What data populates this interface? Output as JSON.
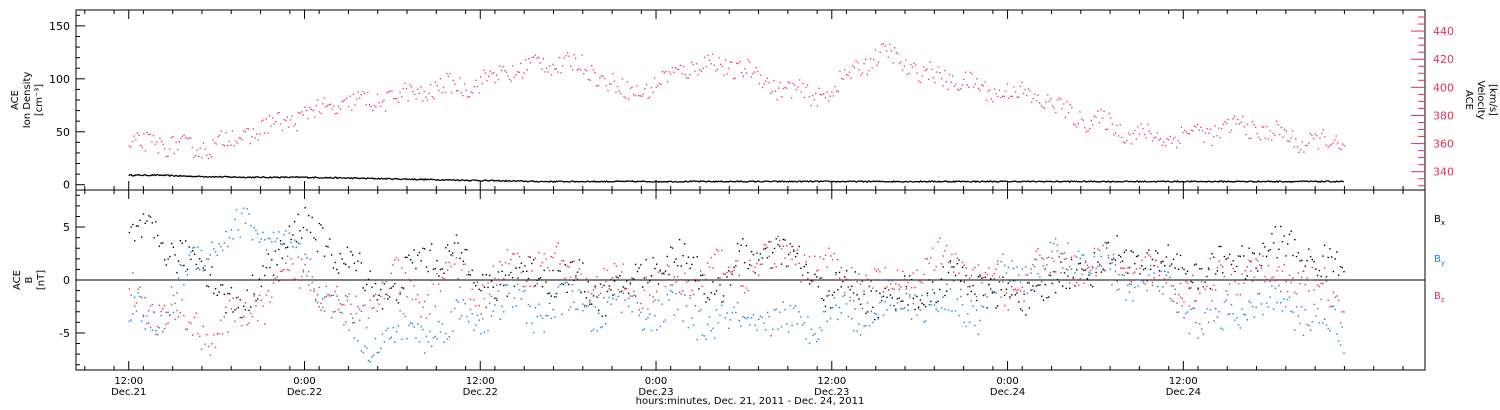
{
  "chart_data": [
    {
      "type": "scatter",
      "panel": "top",
      "ylabel_left": [
        "ACE",
        "Ion Density",
        "[cm⁻³]"
      ],
      "ylabel_right": [
        "ACE",
        "Velocity",
        "[km/s]"
      ],
      "yticks_left": [
        0,
        50,
        100,
        150
      ],
      "ylim_left": [
        -5,
        165
      ],
      "yticks_right": [
        340,
        360,
        380,
        400,
        420,
        440
      ],
      "ylim_right": [
        327,
        455
      ],
      "colors": {
        "density": "#000000",
        "velocity": "#e8305a"
      },
      "series": [
        {
          "axis": "left",
          "hours": [
            0,
            2,
            4,
            8,
            12,
            16,
            20,
            24,
            28,
            32,
            36,
            40,
            44,
            48,
            52,
            56,
            60,
            64,
            68,
            72,
            76,
            80,
            83
          ],
          "values": [
            9,
            9,
            8,
            7,
            7,
            6,
            5,
            4,
            3,
            3,
            3,
            3,
            3,
            3,
            3,
            3,
            3,
            3,
            3,
            3,
            3,
            3,
            3
          ]
        },
        {
          "name": "Velocity",
          "axis": "right",
          "hours": [
            0,
            2,
            4,
            6,
            8,
            10,
            12,
            14,
            16,
            18,
            20,
            22,
            24,
            26,
            28,
            30,
            32,
            34,
            36,
            38,
            40,
            42,
            44,
            46,
            48,
            50,
            52,
            54,
            56,
            58,
            60,
            62,
            64,
            66,
            68,
            70,
            72,
            74,
            76,
            78,
            80,
            82,
            83
          ],
          "values": [
            357,
            362,
            356,
            360,
            367,
            374,
            381,
            387,
            390,
            393,
            397,
            401,
            404,
            412,
            417,
            418,
            410,
            396,
            402,
            415,
            417,
            413,
            402,
            395,
            397,
            418,
            424,
            410,
            407,
            400,
            397,
            394,
            382,
            376,
            370,
            364,
            367,
            369,
            373,
            368,
            362,
            361,
            358
          ]
        }
      ]
    },
    {
      "type": "scatter",
      "panel": "bottom",
      "ylabel": [
        "ACE",
        "B",
        "[nT]"
      ],
      "yticks": [
        -5,
        0,
        5
      ],
      "ylim": [
        -8.5,
        8.5
      ],
      "zero_line": true,
      "colors": {
        "Bx": "#000000",
        "By": "#1a7fdc",
        "Bz": "#e8305a"
      },
      "series": [
        {
          "name": "Bx",
          "label_main": "B",
          "label_sub": "x",
          "hours": [
            0,
            2,
            4,
            6,
            8,
            10,
            12,
            14,
            16,
            18,
            20,
            22,
            24,
            26,
            28,
            30,
            32,
            34,
            36,
            38,
            40,
            42,
            44,
            46,
            48,
            50,
            52,
            54,
            56,
            58,
            60,
            62,
            64,
            66,
            68,
            70,
            72,
            74,
            76,
            78,
            80,
            82,
            83
          ],
          "values": [
            4,
            4,
            2,
            0,
            -3,
            3,
            5,
            3,
            0,
            -1,
            2,
            3,
            0,
            0,
            1,
            0,
            -1,
            -1,
            2,
            2,
            -1,
            2,
            3,
            1,
            -1,
            -1,
            -2,
            -1,
            0,
            0,
            -2,
            -1,
            0,
            2,
            2,
            2,
            1,
            1,
            2,
            3,
            3,
            1,
            1
          ]
        },
        {
          "name": "By",
          "label_main": "B",
          "label_sub": "y",
          "hours": [
            0,
            2,
            4,
            6,
            8,
            10,
            12,
            14,
            16,
            18,
            20,
            22,
            24,
            26,
            28,
            30,
            32,
            34,
            36,
            38,
            40,
            42,
            44,
            46,
            48,
            50,
            52,
            54,
            56,
            58,
            60,
            62,
            64,
            66,
            68,
            70,
            72,
            74,
            76,
            78,
            80,
            82,
            83
          ],
          "values": [
            -3,
            -4,
            1,
            4,
            5,
            4,
            1,
            -2,
            -6,
            -5,
            -5,
            -4,
            -3,
            -2,
            -3,
            -2,
            -3,
            -2,
            -3,
            -3,
            -4,
            -4,
            -4,
            -4,
            -3,
            -3,
            -2,
            -2,
            -2,
            -3,
            1,
            1,
            2,
            2,
            0,
            0,
            -3,
            -4,
            -3,
            -2,
            -3,
            -4,
            -5
          ]
        },
        {
          "name": "Bz",
          "label_main": "B",
          "label_sub": "z",
          "hours": [
            0,
            2,
            4,
            6,
            8,
            10,
            12,
            14,
            16,
            18,
            20,
            22,
            24,
            26,
            28,
            30,
            32,
            34,
            36,
            38,
            40,
            42,
            44,
            46,
            48,
            50,
            52,
            54,
            56,
            58,
            60,
            62,
            64,
            66,
            68,
            70,
            72,
            74,
            76,
            78,
            80,
            82,
            83
          ],
          "values": [
            -1,
            -3,
            -4,
            -5,
            -3,
            -1,
            1,
            -2,
            -3,
            0,
            -2,
            1,
            -1,
            1,
            2,
            1,
            -1,
            0,
            -1,
            0,
            1,
            1,
            2,
            2,
            1,
            0,
            -1,
            1,
            2,
            0,
            -1,
            1,
            2,
            1,
            1,
            0,
            -1,
            0,
            1,
            1,
            0,
            -1,
            -2
          ]
        }
      ]
    }
  ],
  "x_axis": {
    "hours_range": [
      -3.6,
      88.5
    ],
    "ticks": [
      {
        "hours": 0,
        "time": "12:00",
        "date": "Dec.21"
      },
      {
        "hours": 12,
        "time": "0:00",
        "date": "Dec.22"
      },
      {
        "hours": 24,
        "time": "12:00",
        "date": "Dec.22"
      },
      {
        "hours": 36,
        "time": "0:00",
        "date": "Dec.23"
      },
      {
        "hours": 48,
        "time": "12:00",
        "date": "Dec.23"
      },
      {
        "hours": 60,
        "time": "0:00",
        "date": "Dec.24"
      },
      {
        "hours": 72,
        "time": "12:00",
        "date": "Dec.24"
      }
    ],
    "xlabel": "hours:minutes, Dec. 21, 2011 - Dec. 24, 2011"
  }
}
